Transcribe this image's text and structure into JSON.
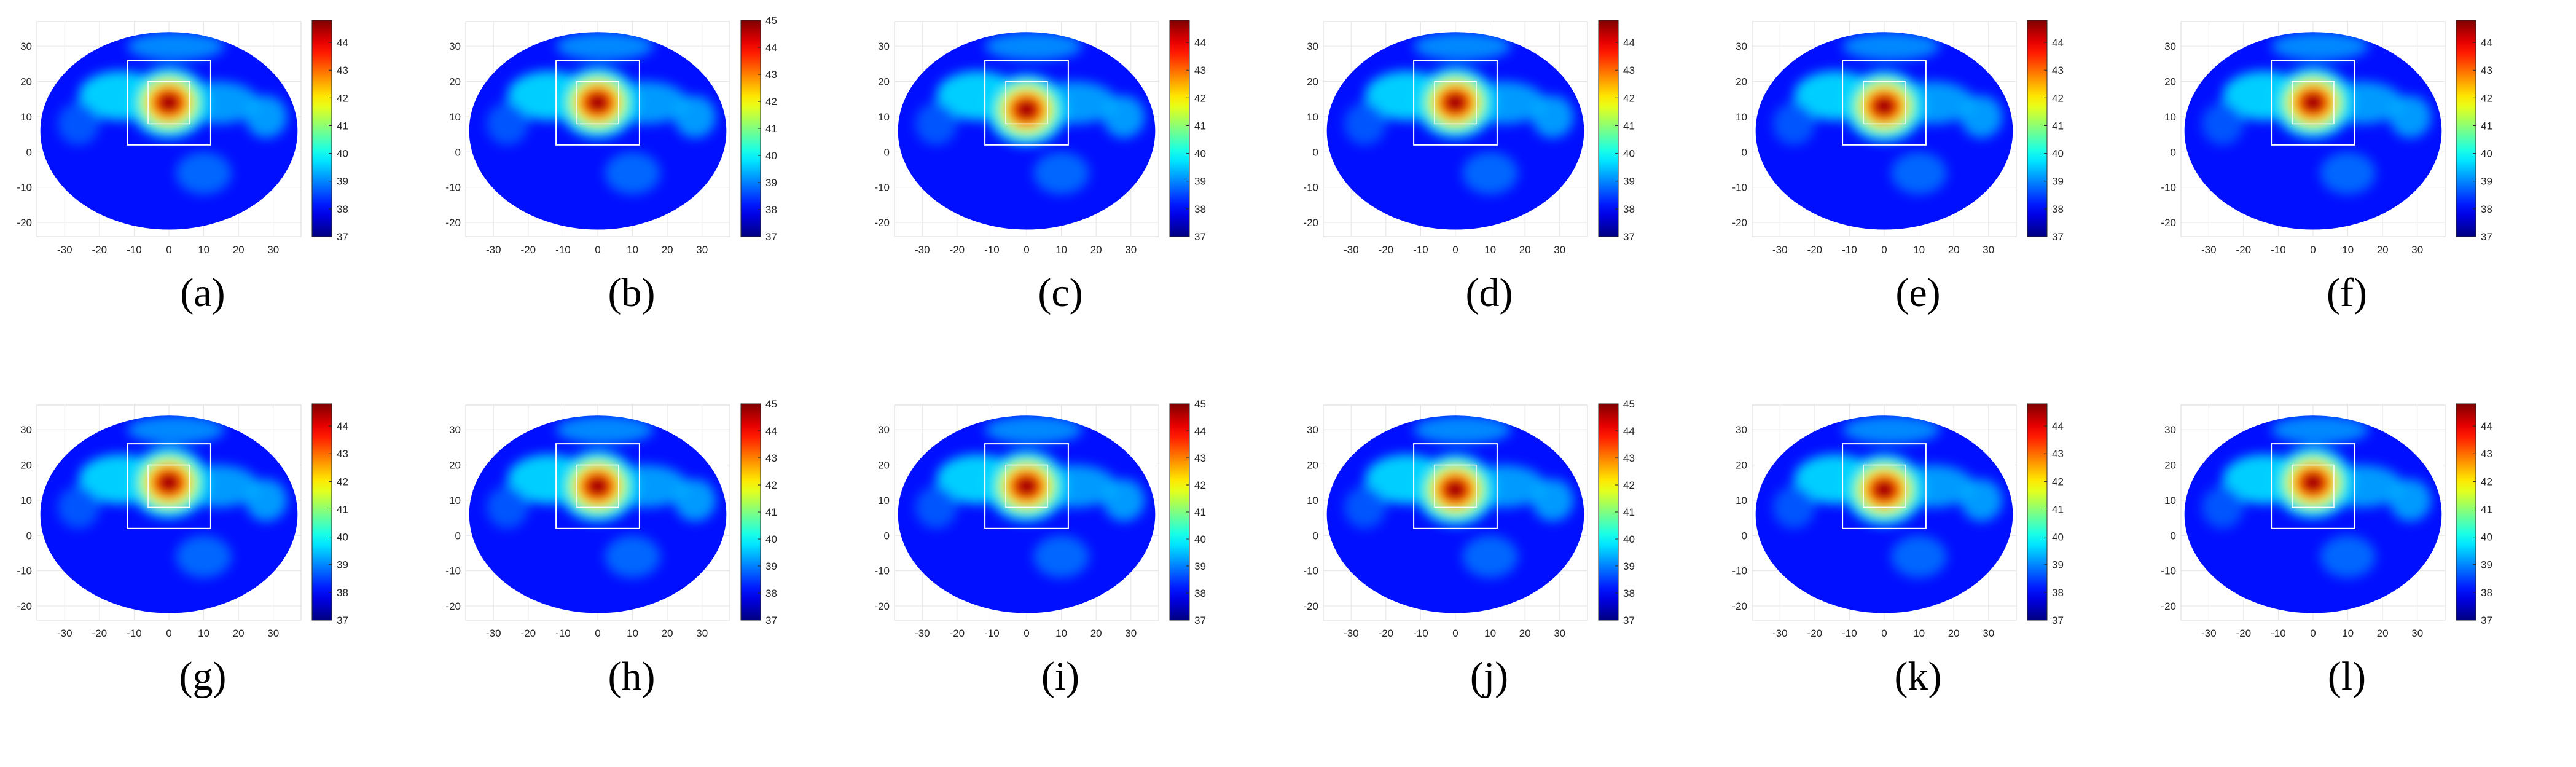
{
  "figure": {
    "captions": [
      "(a)",
      "(b)",
      "(c)",
      "(d)",
      "(e)",
      "(f)",
      "(g)",
      "(h)",
      "(i)",
      "(j)",
      "(k)",
      "(l)"
    ]
  },
  "colors": {
    "colormap": "jet",
    "box_outline": "#ffffff",
    "axis_grid": "#e6e6e6",
    "axis_text": "#262626"
  },
  "chart_data": [
    {
      "panel": "(a)",
      "type": "heatmap",
      "colormap": "jet",
      "xlim": [
        -38,
        38
      ],
      "ylim": [
        -24,
        37
      ],
      "xticks": [
        -30,
        -20,
        -10,
        0,
        10,
        20,
        30
      ],
      "yticks": [
        -20,
        -10,
        0,
        10,
        20,
        30
      ],
      "grid": true,
      "clim": [
        37,
        44.8
      ],
      "colorbar_ticks": [
        37,
        38,
        39,
        40,
        41,
        42,
        43,
        44
      ],
      "hotspot": {
        "x": 0,
        "y": 14,
        "peak": 44.8
      },
      "outer_box": {
        "x": [
          -12,
          12
        ],
        "y": [
          2,
          26
        ]
      },
      "inner_box": {
        "x": [
          -6,
          6
        ],
        "y": [
          8,
          20
        ]
      }
    },
    {
      "panel": "(b)",
      "type": "heatmap",
      "colormap": "jet",
      "xlim": [
        -38,
        38
      ],
      "ylim": [
        -24,
        37
      ],
      "xticks": [
        -30,
        -20,
        -10,
        0,
        10,
        20,
        30
      ],
      "yticks": [
        -20,
        -10,
        0,
        10,
        20,
        30
      ],
      "grid": true,
      "clim": [
        37,
        45
      ],
      "colorbar_ticks": [
        37,
        38,
        39,
        40,
        41,
        42,
        43,
        44,
        45
      ],
      "hotspot": {
        "x": 0,
        "y": 14,
        "peak": 45
      },
      "outer_box": {
        "x": [
          -12,
          12
        ],
        "y": [
          2,
          26
        ]
      },
      "inner_box": {
        "x": [
          -6,
          6
        ],
        "y": [
          8,
          20
        ]
      }
    },
    {
      "panel": "(c)",
      "type": "heatmap",
      "colormap": "jet",
      "xlim": [
        -38,
        38
      ],
      "ylim": [
        -24,
        37
      ],
      "xticks": [
        -30,
        -20,
        -10,
        0,
        10,
        20,
        30
      ],
      "yticks": [
        -20,
        -10,
        0,
        10,
        20,
        30
      ],
      "grid": true,
      "clim": [
        37,
        44.8
      ],
      "colorbar_ticks": [
        37,
        38,
        39,
        40,
        41,
        42,
        43,
        44
      ],
      "hotspot": {
        "x": 0,
        "y": 12,
        "peak": 44.8
      },
      "outer_box": {
        "x": [
          -12,
          12
        ],
        "y": [
          2,
          26
        ]
      },
      "inner_box": {
        "x": [
          -6,
          6
        ],
        "y": [
          8,
          20
        ]
      }
    },
    {
      "panel": "(d)",
      "type": "heatmap",
      "colormap": "jet",
      "xlim": [
        -38,
        38
      ],
      "ylim": [
        -24,
        37
      ],
      "xticks": [
        -30,
        -20,
        -10,
        0,
        10,
        20,
        30
      ],
      "yticks": [
        -20,
        -10,
        0,
        10,
        20,
        30
      ],
      "grid": true,
      "clim": [
        37,
        44.8
      ],
      "colorbar_ticks": [
        37,
        38,
        39,
        40,
        41,
        42,
        43,
        44
      ],
      "hotspot": {
        "x": 0,
        "y": 14,
        "peak": 44.8
      },
      "outer_box": {
        "x": [
          -12,
          12
        ],
        "y": [
          2,
          26
        ]
      },
      "inner_box": {
        "x": [
          -6,
          6
        ],
        "y": [
          8,
          20
        ]
      }
    },
    {
      "panel": "(e)",
      "type": "heatmap",
      "colormap": "jet",
      "xlim": [
        -38,
        38
      ],
      "ylim": [
        -24,
        37
      ],
      "xticks": [
        -30,
        -20,
        -10,
        0,
        10,
        20,
        30
      ],
      "yticks": [
        -20,
        -10,
        0,
        10,
        20,
        30
      ],
      "grid": true,
      "clim": [
        37,
        44.8
      ],
      "colorbar_ticks": [
        37,
        38,
        39,
        40,
        41,
        42,
        43,
        44
      ],
      "hotspot": {
        "x": 0,
        "y": 13,
        "peak": 44.8
      },
      "outer_box": {
        "x": [
          -12,
          12
        ],
        "y": [
          2,
          26
        ]
      },
      "inner_box": {
        "x": [
          -6,
          6
        ],
        "y": [
          8,
          20
        ]
      }
    },
    {
      "panel": "(f)",
      "type": "heatmap",
      "colormap": "jet",
      "xlim": [
        -38,
        38
      ],
      "ylim": [
        -24,
        37
      ],
      "xticks": [
        -30,
        -20,
        -10,
        0,
        10,
        20,
        30
      ],
      "yticks": [
        -20,
        -10,
        0,
        10,
        20,
        30
      ],
      "grid": true,
      "clim": [
        37,
        44.8
      ],
      "colorbar_ticks": [
        37,
        38,
        39,
        40,
        41,
        42,
        43,
        44
      ],
      "hotspot": {
        "x": 0,
        "y": 14,
        "peak": 44.8
      },
      "outer_box": {
        "x": [
          -12,
          12
        ],
        "y": [
          2,
          26
        ]
      },
      "inner_box": {
        "x": [
          -6,
          6
        ],
        "y": [
          8,
          20
        ]
      }
    },
    {
      "panel": "(g)",
      "type": "heatmap",
      "colormap": "jet",
      "xlim": [
        -38,
        38
      ],
      "ylim": [
        -24,
        37
      ],
      "xticks": [
        -30,
        -20,
        -10,
        0,
        10,
        20,
        30
      ],
      "yticks": [
        -20,
        -10,
        0,
        10,
        20,
        30
      ],
      "grid": true,
      "clim": [
        37,
        44.8
      ],
      "colorbar_ticks": [
        37,
        38,
        39,
        40,
        41,
        42,
        43,
        44
      ],
      "hotspot": {
        "x": 0,
        "y": 15,
        "peak": 44.8
      },
      "outer_box": {
        "x": [
          -12,
          12
        ],
        "y": [
          2,
          26
        ]
      },
      "inner_box": {
        "x": [
          -6,
          6
        ],
        "y": [
          8,
          20
        ]
      }
    },
    {
      "panel": "(h)",
      "type": "heatmap",
      "colormap": "jet",
      "xlim": [
        -38,
        38
      ],
      "ylim": [
        -24,
        37
      ],
      "xticks": [
        -30,
        -20,
        -10,
        0,
        10,
        20,
        30
      ],
      "yticks": [
        -20,
        -10,
        0,
        10,
        20,
        30
      ],
      "grid": true,
      "clim": [
        37,
        45
      ],
      "colorbar_ticks": [
        37,
        38,
        39,
        40,
        41,
        42,
        43,
        44,
        45
      ],
      "hotspot": {
        "x": 0,
        "y": 14,
        "peak": 45
      },
      "outer_box": {
        "x": [
          -12,
          12
        ],
        "y": [
          2,
          26
        ]
      },
      "inner_box": {
        "x": [
          -6,
          6
        ],
        "y": [
          8,
          20
        ]
      }
    },
    {
      "panel": "(i)",
      "type": "heatmap",
      "colormap": "jet",
      "xlim": [
        -38,
        38
      ],
      "ylim": [
        -24,
        37
      ],
      "xticks": [
        -30,
        -20,
        -10,
        0,
        10,
        20,
        30
      ],
      "yticks": [
        -20,
        -10,
        0,
        10,
        20,
        30
      ],
      "grid": true,
      "clim": [
        37,
        45
      ],
      "colorbar_ticks": [
        37,
        38,
        39,
        40,
        41,
        42,
        43,
        44,
        45
      ],
      "hotspot": {
        "x": 0,
        "y": 14,
        "peak": 45
      },
      "outer_box": {
        "x": [
          -12,
          12
        ],
        "y": [
          2,
          26
        ]
      },
      "inner_box": {
        "x": [
          -6,
          6
        ],
        "y": [
          8,
          20
        ]
      }
    },
    {
      "panel": "(j)",
      "type": "heatmap",
      "colormap": "jet",
      "xlim": [
        -38,
        38
      ],
      "ylim": [
        -24,
        37
      ],
      "xticks": [
        -30,
        -20,
        -10,
        0,
        10,
        20,
        30
      ],
      "yticks": [
        -20,
        -10,
        0,
        10,
        20,
        30
      ],
      "grid": true,
      "clim": [
        37,
        45
      ],
      "colorbar_ticks": [
        37,
        38,
        39,
        40,
        41,
        42,
        43,
        44,
        45
      ],
      "hotspot": {
        "x": 0,
        "y": 13,
        "peak": 45
      },
      "outer_box": {
        "x": [
          -12,
          12
        ],
        "y": [
          2,
          26
        ]
      },
      "inner_box": {
        "x": [
          -6,
          6
        ],
        "y": [
          8,
          20
        ]
      }
    },
    {
      "panel": "(k)",
      "type": "heatmap",
      "colormap": "jet",
      "xlim": [
        -38,
        38
      ],
      "ylim": [
        -24,
        37
      ],
      "xticks": [
        -30,
        -20,
        -10,
        0,
        10,
        20,
        30
      ],
      "yticks": [
        -20,
        -10,
        0,
        10,
        20,
        30
      ],
      "grid": true,
      "clim": [
        37,
        44.8
      ],
      "colorbar_ticks": [
        37,
        38,
        39,
        40,
        41,
        42,
        43,
        44
      ],
      "hotspot": {
        "x": 0,
        "y": 13,
        "peak": 44.8
      },
      "outer_box": {
        "x": [
          -12,
          12
        ],
        "y": [
          2,
          26
        ]
      },
      "inner_box": {
        "x": [
          -6,
          6
        ],
        "y": [
          8,
          20
        ]
      }
    },
    {
      "panel": "(l)",
      "type": "heatmap",
      "colormap": "jet",
      "xlim": [
        -38,
        38
      ],
      "ylim": [
        -24,
        37
      ],
      "xticks": [
        -30,
        -20,
        -10,
        0,
        10,
        20,
        30
      ],
      "yticks": [
        -20,
        -10,
        0,
        10,
        20,
        30
      ],
      "grid": true,
      "clim": [
        37,
        44.8
      ],
      "colorbar_ticks": [
        37,
        38,
        39,
        40,
        41,
        42,
        43,
        44
      ],
      "hotspot": {
        "x": 0,
        "y": 15,
        "peak": 44.8
      },
      "outer_box": {
        "x": [
          -12,
          12
        ],
        "y": [
          2,
          26
        ]
      },
      "inner_box": {
        "x": [
          -6,
          6
        ],
        "y": [
          8,
          20
        ]
      }
    }
  ]
}
